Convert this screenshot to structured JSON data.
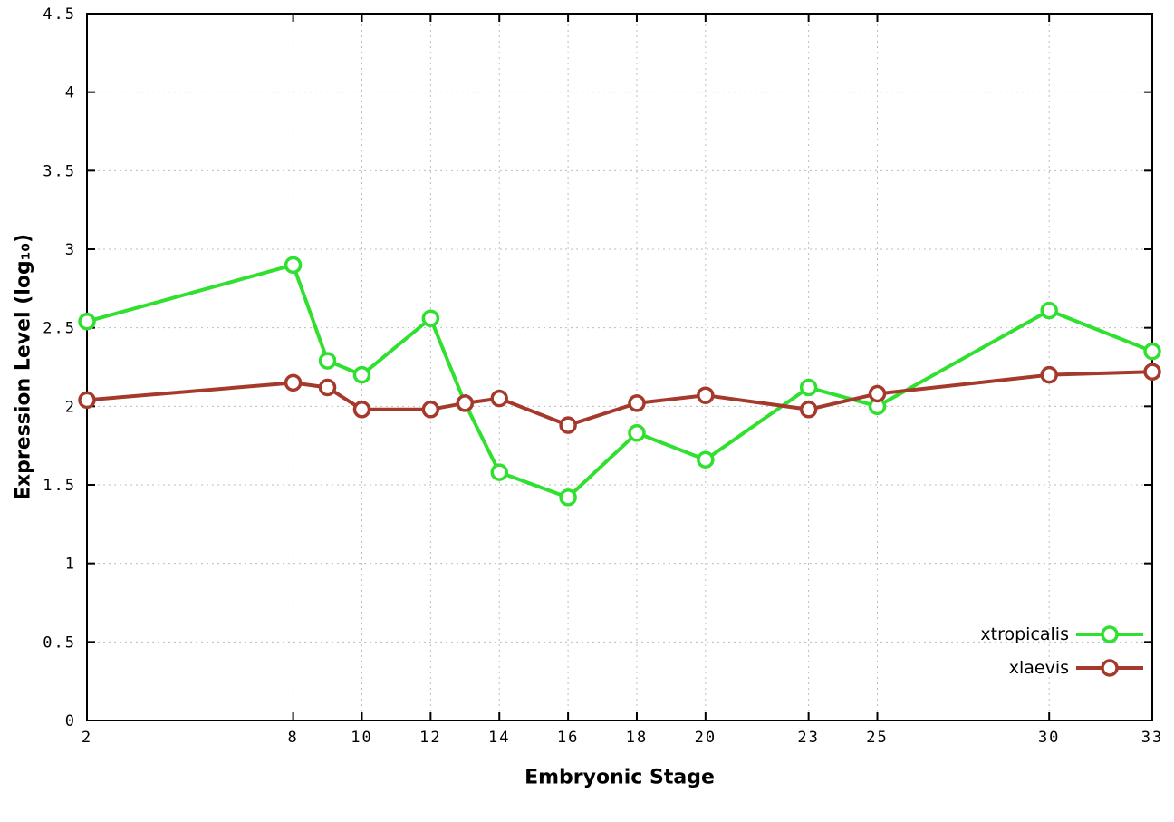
{
  "chart_data": {
    "type": "line",
    "title": "",
    "xlabel": "Embryonic Stage",
    "ylabel": "Expression Level (log₁₀)",
    "xlim": [
      2,
      33
    ],
    "ylim": [
      0,
      4.5
    ],
    "x_ticks": [
      2,
      8,
      10,
      12,
      14,
      16,
      18,
      20,
      23,
      25,
      30,
      33
    ],
    "y_ticks": [
      0,
      0.5,
      1,
      1.5,
      2,
      2.5,
      3,
      3.5,
      4,
      4.5
    ],
    "grid": true,
    "legend_position": "bottom-right",
    "x": [
      2,
      8,
      9,
      10,
      12,
      13,
      14,
      16,
      18,
      20,
      23,
      25,
      30,
      33
    ],
    "series": [
      {
        "name": "xtropicalis",
        "color": "#2fe02f",
        "values": [
          2.54,
          2.9,
          2.29,
          2.2,
          2.56,
          2.02,
          1.58,
          1.42,
          1.83,
          1.66,
          2.12,
          2.0,
          2.61,
          2.35
        ]
      },
      {
        "name": "xlaevis",
        "color": "#a5392b",
        "values": [
          2.04,
          2.15,
          2.12,
          1.98,
          1.98,
          2.02,
          2.05,
          1.88,
          2.02,
          2.07,
          1.98,
          2.08,
          2.2,
          2.22
        ]
      }
    ],
    "style": {
      "grid_color": "#bdbdbd",
      "border_color": "#000000",
      "tick_label_color": "#000000",
      "line_width": 4,
      "marker_radius": 8,
      "marker_stroke": 3.5
    }
  }
}
